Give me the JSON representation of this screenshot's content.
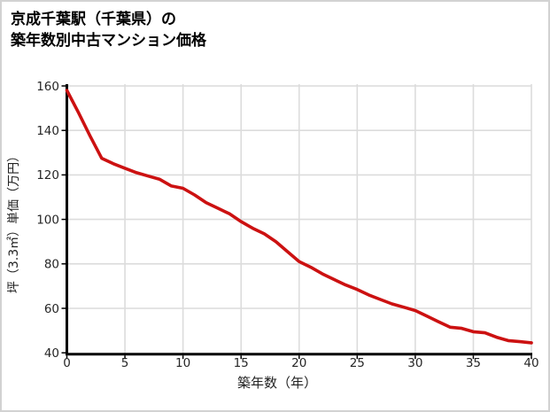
{
  "window": {
    "background": "#ffffff",
    "border_color": "#d2d2d2"
  },
  "title": {
    "line1": "京成千葉駅（千葉県）の",
    "line2": "築年数別中古マンション価格"
  },
  "chart_data": {
    "type": "line",
    "title": "京成千葉駅（千葉県）の築年数別中古マンション価格",
    "xlabel": "築年数（年）",
    "ylabel": "坪（3.3㎡）単価（万円）",
    "x": [
      0,
      1,
      2,
      3,
      4,
      5,
      6,
      7,
      8,
      9,
      10,
      11,
      12,
      13,
      14,
      15,
      16,
      17,
      18,
      19,
      20,
      21,
      22,
      23,
      24,
      25,
      26,
      27,
      28,
      29,
      30,
      31,
      32,
      33,
      34,
      35,
      36,
      37,
      38,
      39,
      40
    ],
    "values": [
      158,
      148,
      137.5,
      127.5,
      125,
      123,
      121,
      119.5,
      118,
      115,
      114,
      111,
      107.5,
      105,
      102.5,
      99,
      96,
      93.5,
      90,
      85.5,
      81,
      78.5,
      75.5,
      73,
      70.5,
      68.5,
      66,
      64,
      62,
      60.5,
      59,
      56.5,
      54,
      51.5,
      51,
      49.5,
      49,
      47,
      45.5,
      45,
      44.5
    ],
    "xlim": [
      0,
      40
    ],
    "ylim": [
      40,
      160
    ],
    "x_ticks": [
      0,
      5,
      10,
      15,
      20,
      25,
      30,
      35,
      40
    ],
    "y_ticks": [
      40,
      60,
      80,
      100,
      120,
      140,
      160
    ],
    "grid": true,
    "legend": "none",
    "line_color": "#cc1111",
    "grid_color": "#dcdcdc",
    "axis_color": "#000000",
    "tick_label_color": "#262626"
  }
}
